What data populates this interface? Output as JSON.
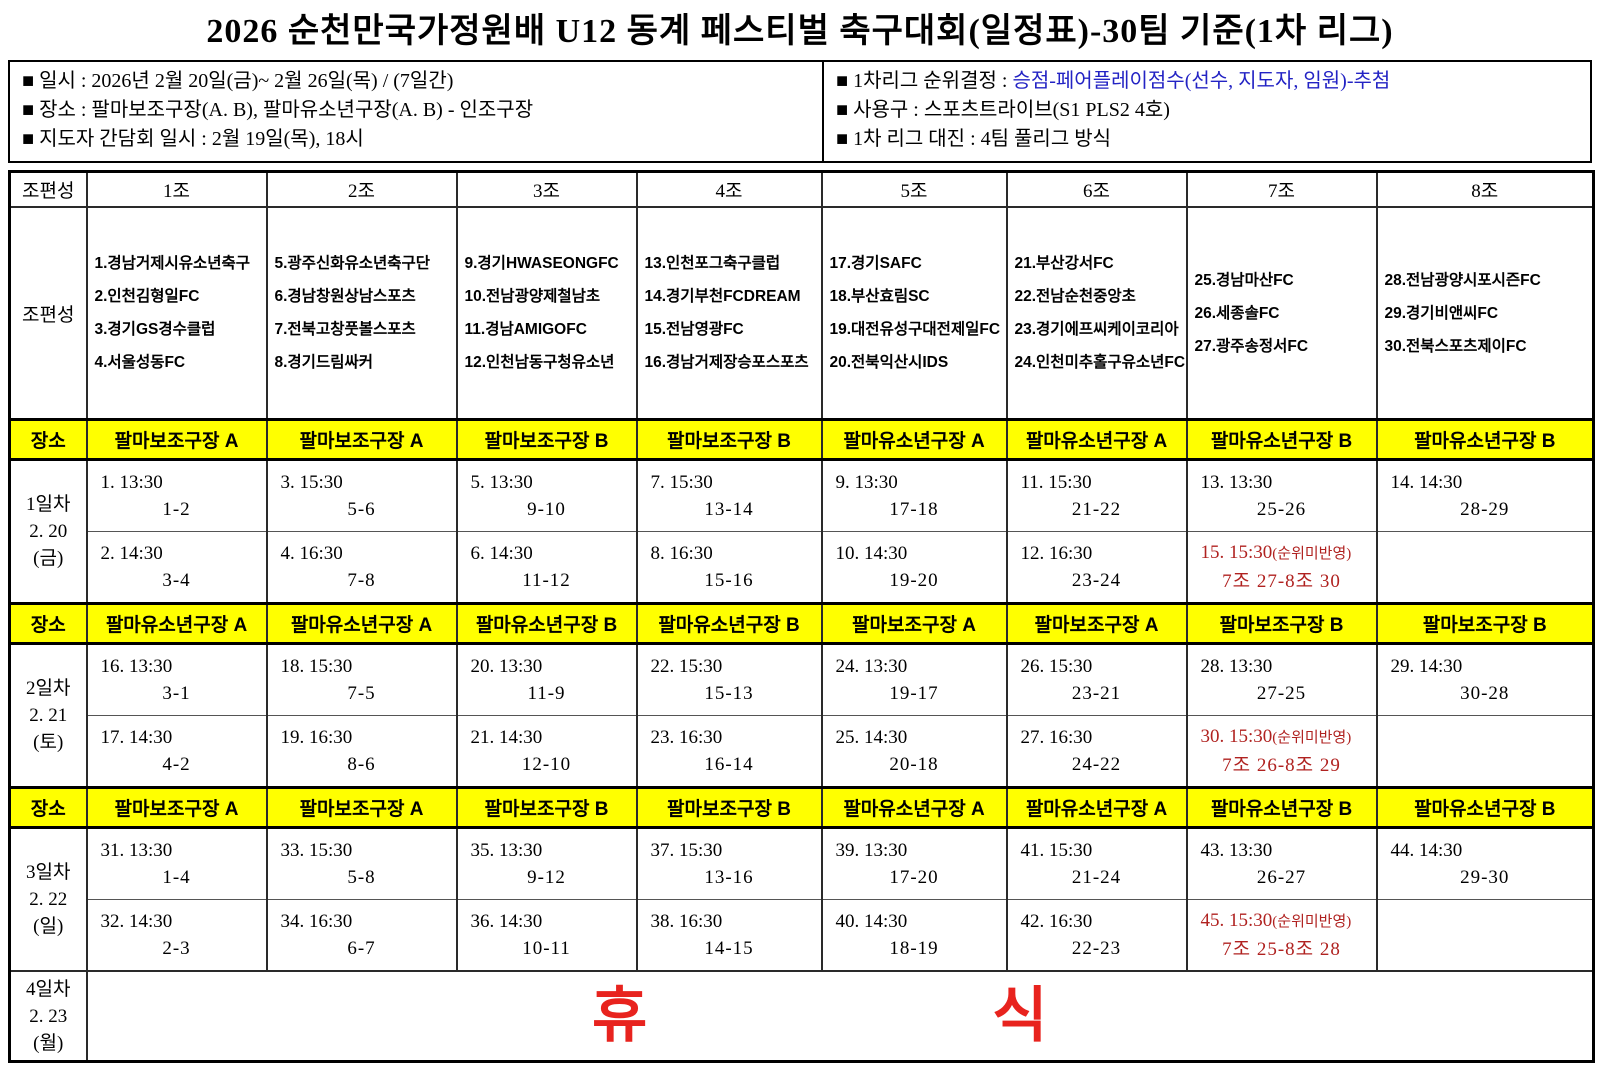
{
  "title": "2026 순천만국가정원배 U12 동계 페스티벌 축구대회(일정표)-30팀 기준(1차 리그)",
  "info": {
    "left": [
      "■ 일시 : 2026년 2월 20일(금)~ 2월 26일(목) / (7일간)",
      "■ 장소 : 팔마보조구장(A. B), 팔마유소년구장(A. B) - 인조구장",
      "■ 지도자 간담회 일시 : 2월 19일(목), 18시"
    ],
    "right": [
      {
        "pre": "■ 1차리그 순위결정 : ",
        "blue": "승점-페어플레이점수(선수, 지도자, 임원)-추첨"
      },
      {
        "pre": "■ 사용구 : 스포츠트라이브(S1 PLS2 4호)",
        "blue": ""
      },
      {
        "pre": "■ 1차 리그 대진 : 4팀 풀리그 방식",
        "blue": ""
      }
    ]
  },
  "colors": {
    "highlight_yellow": "#FFFF00",
    "blue_text": "#2323C4",
    "red_note": "#B02220",
    "rest_red": "#E8231E"
  },
  "table": {
    "corner_header": "조편성",
    "group_headers": [
      "1조",
      "2조",
      "3조",
      "4조",
      "5조",
      "6조",
      "7조",
      "8조"
    ],
    "groups_row_label": "조편성",
    "venue_row_label": "장소",
    "groups": [
      [
        "1.경남거제시유소년축구",
        "2.인천김형일FC",
        "3.경기GS경수클럽",
        "4.서울성동FC"
      ],
      [
        "5.광주신화유소년축구단",
        "6.경남창원상남스포츠",
        "7.전북고창풋볼스포츠",
        "8.경기드림싸커"
      ],
      [
        "9.경기HWASEONGFC",
        "10.전남광양제철남초",
        "11.경남AMIGOFC",
        "12.인천남동구청유소년"
      ],
      [
        "13.인천포그축구클럽",
        "14.경기부천FCDREAM",
        "15.전남영광FC",
        "16.경남거제장승포스포츠"
      ],
      [
        "17.경기SAFC",
        "18.부산효림SC",
        "19.대전유성구대전제일FC",
        "20.전북익산시IDS"
      ],
      [
        "21.부산강서FC",
        "22.전남순천중앙초",
        "23.경기에프씨케이코리아",
        "24.인천미추홀구유소년FC"
      ],
      [
        "25.경남마산FC",
        "26.세종솔FC",
        "27.광주송정서FC"
      ],
      [
        "28.전남광양시포시즌FC",
        "29.경기비앤씨FC",
        "30.전북스포츠제이FC"
      ]
    ],
    "days": [
      {
        "day_lines": [
          "1일차",
          "2. 20",
          "(금)"
        ],
        "venues": [
          "팔마보조구장 A",
          "팔마보조구장 A",
          "팔마보조구장 B",
          "팔마보조구장 B",
          "팔마유소년구장 A",
          "팔마유소년구장 A",
          "팔마유소년구장 B",
          "팔마유소년구장 B"
        ],
        "rows": [
          [
            {
              "t": "1. 13:30",
              "m": "1-2"
            },
            {
              "t": "3. 15:30",
              "m": "5-6"
            },
            {
              "t": "5. 13:30",
              "m": "9-10"
            },
            {
              "t": "7. 15:30",
              "m": "13-14"
            },
            {
              "t": "9. 13:30",
              "m": "17-18"
            },
            {
              "t": "11. 15:30",
              "m": "21-22"
            },
            {
              "t": "13. 13:30",
              "m": "25-26"
            },
            {
              "t": "14. 14:30",
              "m": "28-29"
            }
          ],
          [
            {
              "t": "2. 14:30",
              "m": "3-4"
            },
            {
              "t": "4. 16:30",
              "m": "7-8"
            },
            {
              "t": "6. 14:30",
              "m": "11-12"
            },
            {
              "t": "8. 16:30",
              "m": "15-16"
            },
            {
              "t": "10. 14:30",
              "m": "19-20"
            },
            {
              "t": "12. 16:30",
              "m": "23-24"
            },
            {
              "t": "15. 15:30",
              "note": "(순위미반영)",
              "m": "7조 27-8조 30",
              "red": true
            },
            null
          ]
        ]
      },
      {
        "day_lines": [
          "2일차",
          "2. 21",
          "(토)"
        ],
        "venues": [
          "팔마유소년구장 A",
          "팔마유소년구장 A",
          "팔마유소년구장 B",
          "팔마유소년구장 B",
          "팔마보조구장 A",
          "팔마보조구장 A",
          "팔마보조구장 B",
          "팔마보조구장 B"
        ],
        "rows": [
          [
            {
              "t": "16. 13:30",
              "m": "3-1"
            },
            {
              "t": "18. 15:30",
              "m": "7-5"
            },
            {
              "t": "20. 13:30",
              "m": "11-9"
            },
            {
              "t": "22. 15:30",
              "m": "15-13"
            },
            {
              "t": "24. 13:30",
              "m": "19-17"
            },
            {
              "t": "26. 15:30",
              "m": "23-21"
            },
            {
              "t": "28. 13:30",
              "m": "27-25"
            },
            {
              "t": "29. 14:30",
              "m": "30-28"
            }
          ],
          [
            {
              "t": "17. 14:30",
              "m": "4-2"
            },
            {
              "t": "19. 16:30",
              "m": "8-6"
            },
            {
              "t": "21. 14:30",
              "m": "12-10"
            },
            {
              "t": "23. 16:30",
              "m": "16-14"
            },
            {
              "t": "25. 14:30",
              "m": "20-18"
            },
            {
              "t": "27. 16:30",
              "m": "24-22"
            },
            {
              "t": "30. 15:30",
              "note": "(순위미반영)",
              "m": "7조 26-8조 29",
              "red": true
            },
            null
          ]
        ]
      },
      {
        "day_lines": [
          "3일차",
          "2. 22",
          "(일)"
        ],
        "venues": [
          "팔마보조구장 A",
          "팔마보조구장 A",
          "팔마보조구장 B",
          "팔마보조구장 B",
          "팔마유소년구장 A",
          "팔마유소년구장 A",
          "팔마유소년구장 B",
          "팔마유소년구장 B"
        ],
        "rows": [
          [
            {
              "t": "31. 13:30",
              "m": "1-4"
            },
            {
              "t": "33. 15:30",
              "m": "5-8"
            },
            {
              "t": "35. 13:30",
              "m": "9-12"
            },
            {
              "t": "37. 15:30",
              "m": "13-16"
            },
            {
              "t": "39. 13:30",
              "m": "17-20"
            },
            {
              "t": "41. 15:30",
              "m": "21-24"
            },
            {
              "t": "43. 13:30",
              "m": "26-27"
            },
            {
              "t": "44. 14:30",
              "m": "29-30"
            }
          ],
          [
            {
              "t": "32. 14:30",
              "m": "2-3"
            },
            {
              "t": "34. 16:30",
              "m": "6-7"
            },
            {
              "t": "36. 14:30",
              "m": "10-11"
            },
            {
              "t": "38. 16:30",
              "m": "14-15"
            },
            {
              "t": "40. 14:30",
              "m": "18-19"
            },
            {
              "t": "42. 16:30",
              "m": "22-23"
            },
            {
              "t": "45. 15:30",
              "note": "(순위미반영)",
              "m": "7조 25-8조 28",
              "red": true
            },
            null
          ]
        ]
      }
    ],
    "rest": {
      "day_lines": [
        "4일차",
        "2. 23",
        "(월)"
      ],
      "chars": [
        "휴",
        "식"
      ]
    }
  }
}
